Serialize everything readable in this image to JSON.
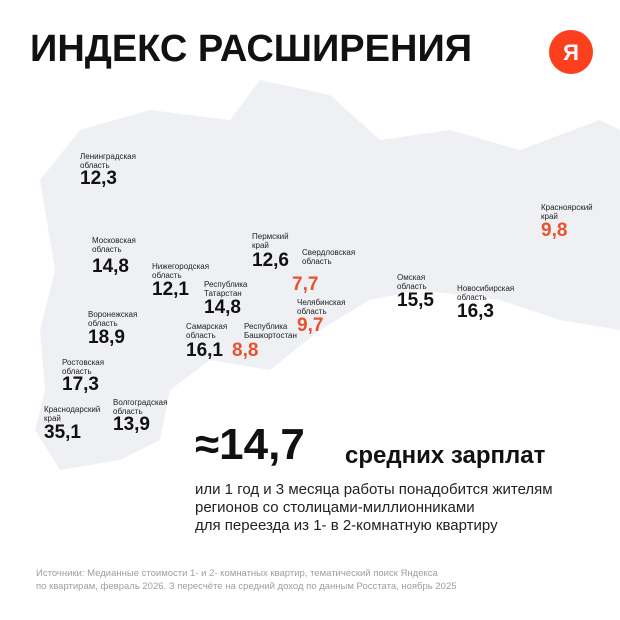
{
  "header": {
    "title": "ИНДЕКС РАСШИРЕНИЯ",
    "logo": "Я"
  },
  "regions": [
    {
      "name": "Ленинградская\nобласть",
      "value": "12,3",
      "highlight": false
    },
    {
      "name": "Московская\nобласть",
      "value": "14,8",
      "highlight": false
    },
    {
      "name": "Нижегородская\nобласть",
      "value": "12,1",
      "highlight": false
    },
    {
      "name": "Пермский\nкрай",
      "value": "12,6",
      "highlight": false
    },
    {
      "name": "Свердловская\nобласть",
      "value": "7,7",
      "highlight": true
    },
    {
      "name": "Республика\nТатарстан",
      "value": "14,8",
      "highlight": false
    },
    {
      "name": "Воронежская\nобласть",
      "value": "18,9",
      "highlight": false
    },
    {
      "name": "Самарская\nобласть",
      "value": "16,1",
      "highlight": false
    },
    {
      "name": "Республика\nБашкортостан",
      "value": "8,8",
      "highlight": true
    },
    {
      "name": "Челябинская\nобласть",
      "value": "9,7",
      "highlight": true
    },
    {
      "name": "Омская\nобласть",
      "value": "15,5",
      "highlight": false
    },
    {
      "name": "Новосибирская\nобласть",
      "value": "16,3",
      "highlight": false
    },
    {
      "name": "Красноярский\nкрай",
      "value": "9,8",
      "highlight": true
    },
    {
      "name": "Ростовская\nобласть",
      "value": "17,3",
      "highlight": false
    },
    {
      "name": "Волгоградская\nобласть",
      "value": "13,9",
      "highlight": false
    },
    {
      "name": "Краснодарский\nкрай",
      "value": "35,1",
      "highlight": false
    }
  ],
  "summary": {
    "value": "≈14,7",
    "unit": "средних зарплат",
    "lines": [
      "или 1 год и 3 месяца работы понадобится жителям",
      "регионов со столицами-миллионниками",
      "для переезда из 1- в 2-комнатную квартиру"
    ]
  },
  "sources": [
    "Источники: Медианные стоимости 1- и 2- комнатных квартир, тематический поиск Яндекса",
    "по квартирам, февраль 2026. З пересчёте на средний доход по данным Росстата, ноябрь 2025"
  ]
}
